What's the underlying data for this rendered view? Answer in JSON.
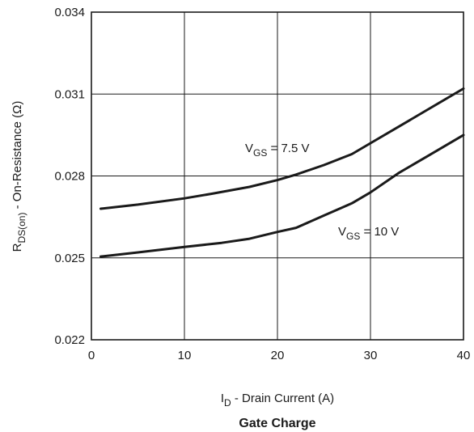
{
  "chart_data": {
    "type": "line",
    "caption": "Gate Charge",
    "xlabel": {
      "main": "I",
      "sub": "D",
      "rest": " - Drain Current (A)"
    },
    "ylabel": {
      "main": "R",
      "sub": "DS(on)",
      "rest": " - On-Resistance (Ω)"
    },
    "xlim": [
      0,
      40
    ],
    "ylim": [
      0.022,
      0.034
    ],
    "xticks": [
      0,
      10,
      20,
      30,
      40
    ],
    "xtick_labels": [
      "0",
      "10",
      "20",
      "30",
      "40"
    ],
    "yticks": [
      0.022,
      0.025,
      0.028,
      0.031,
      0.034
    ],
    "ytick_labels": [
      "0.022",
      "0.025",
      "0.028",
      "0.031",
      "0.034"
    ],
    "grid": true,
    "series": [
      {
        "label": {
          "main": "V",
          "sub": "GS",
          "rest": " = 7.5 V"
        },
        "x": [
          1,
          5,
          10,
          13,
          17,
          20,
          22,
          25,
          28,
          30,
          33,
          36,
          40
        ],
        "y": [
          0.0268,
          0.02695,
          0.02718,
          0.02735,
          0.0276,
          0.02785,
          0.02805,
          0.0284,
          0.0288,
          0.0292,
          0.0298,
          0.0304,
          0.0312
        ]
      },
      {
        "label": {
          "main": "V",
          "sub": "GS",
          "rest": " = 10 V"
        },
        "x": [
          1,
          5,
          10,
          14,
          17,
          20,
          22,
          25,
          28,
          30,
          33,
          36,
          40
        ],
        "y": [
          0.02505,
          0.0252,
          0.0254,
          0.02555,
          0.0257,
          0.02595,
          0.0261,
          0.02655,
          0.027,
          0.0274,
          0.0281,
          0.0287,
          0.0295
        ]
      }
    ]
  }
}
